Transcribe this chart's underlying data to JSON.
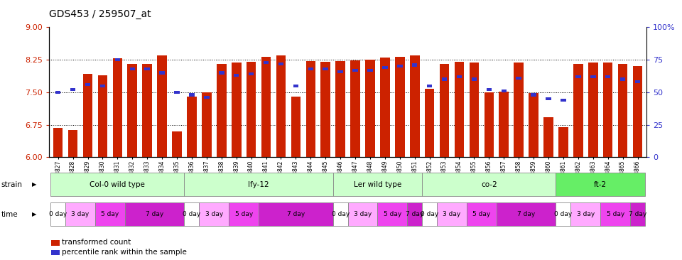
{
  "title": "GDS453 / 259507_at",
  "samples": [
    "GSM8827",
    "GSM8828",
    "GSM8829",
    "GSM8830",
    "GSM8831",
    "GSM8832",
    "GSM8833",
    "GSM8834",
    "GSM8835",
    "GSM8836",
    "GSM8837",
    "GSM8838",
    "GSM8839",
    "GSM8840",
    "GSM8841",
    "GSM8842",
    "GSM8843",
    "GSM8844",
    "GSM8845",
    "GSM8846",
    "GSM8847",
    "GSM8848",
    "GSM8849",
    "GSM8850",
    "GSM8851",
    "GSM8852",
    "GSM8853",
    "GSM8854",
    "GSM8855",
    "GSM8856",
    "GSM8857",
    "GSM8858",
    "GSM8859",
    "GSM8860",
    "GSM8861",
    "GSM8862",
    "GSM8863",
    "GSM8864",
    "GSM8865",
    "GSM8866"
  ],
  "red_values": [
    6.68,
    6.63,
    7.93,
    7.9,
    8.28,
    8.15,
    8.15,
    8.35,
    6.6,
    7.4,
    7.5,
    8.15,
    8.18,
    8.2,
    8.32,
    8.35,
    7.4,
    8.22,
    8.2,
    8.22,
    8.24,
    8.25,
    8.3,
    8.32,
    8.35,
    7.58,
    8.15,
    8.2,
    8.18,
    7.5,
    7.52,
    8.18,
    7.48,
    6.92,
    6.7,
    8.15,
    8.18,
    8.18,
    8.15,
    8.1
  ],
  "blue_values": [
    50,
    52,
    56,
    55,
    75,
    68,
    68,
    65,
    50,
    48,
    46,
    65,
    63,
    64,
    73,
    72,
    55,
    68,
    68,
    66,
    67,
    67,
    69,
    70,
    71,
    55,
    60,
    62,
    60,
    52,
    51,
    61,
    48,
    45,
    44,
    62,
    62,
    62,
    60,
    58
  ],
  "ylim_left": [
    6,
    9
  ],
  "ylim_right": [
    0,
    100
  ],
  "yticks_left": [
    6,
    6.75,
    7.5,
    8.25,
    9
  ],
  "yticks_right": [
    0,
    25,
    50,
    75,
    100
  ],
  "ytick_labels_right": [
    "0",
    "25",
    "50",
    "75",
    "100%"
  ],
  "bar_color": "#cc2200",
  "blue_color": "#3333cc",
  "strains": [
    {
      "label": "Col-0 wild type",
      "start": 0,
      "end": 9,
      "color": "#ccffcc"
    },
    {
      "label": "lfy-12",
      "start": 9,
      "end": 19,
      "color": "#ccffcc"
    },
    {
      "label": "Ler wild type",
      "start": 19,
      "end": 25,
      "color": "#ccffcc"
    },
    {
      "label": "co-2",
      "start": 25,
      "end": 34,
      "color": "#ccffcc"
    },
    {
      "label": "ft-2",
      "start": 34,
      "end": 40,
      "color": "#66ee66"
    }
  ],
  "time_pattern": [
    "0 day",
    "3 day",
    "3 day",
    "5 day",
    "5 day",
    "7 day",
    "7 day",
    "7 day",
    "7 day",
    "0 day",
    "3 day",
    "3 day",
    "5 day",
    "5 day",
    "7 day",
    "7 day",
    "7 day",
    "7 day",
    "7 day",
    "0 day",
    "3 day",
    "3 day",
    "5 day",
    "5 day",
    "7 day",
    "0 day",
    "3 day",
    "3 day",
    "5 day",
    "5 day",
    "7 day",
    "7 day",
    "7 day",
    "7 day",
    "0 day",
    "3 day",
    "3 day",
    "5 day",
    "5 day",
    "7 day"
  ],
  "time_colors": {
    "0 day": "#ffffff",
    "3 day": "#ffaaff",
    "5 day": "#ee44ee",
    "7 day": "#cc22cc"
  },
  "bg_color": "#ffffff",
  "legend_items": [
    {
      "label": "transformed count",
      "color": "#cc2200"
    },
    {
      "label": "percentile rank within the sample",
      "color": "#3333cc"
    }
  ]
}
